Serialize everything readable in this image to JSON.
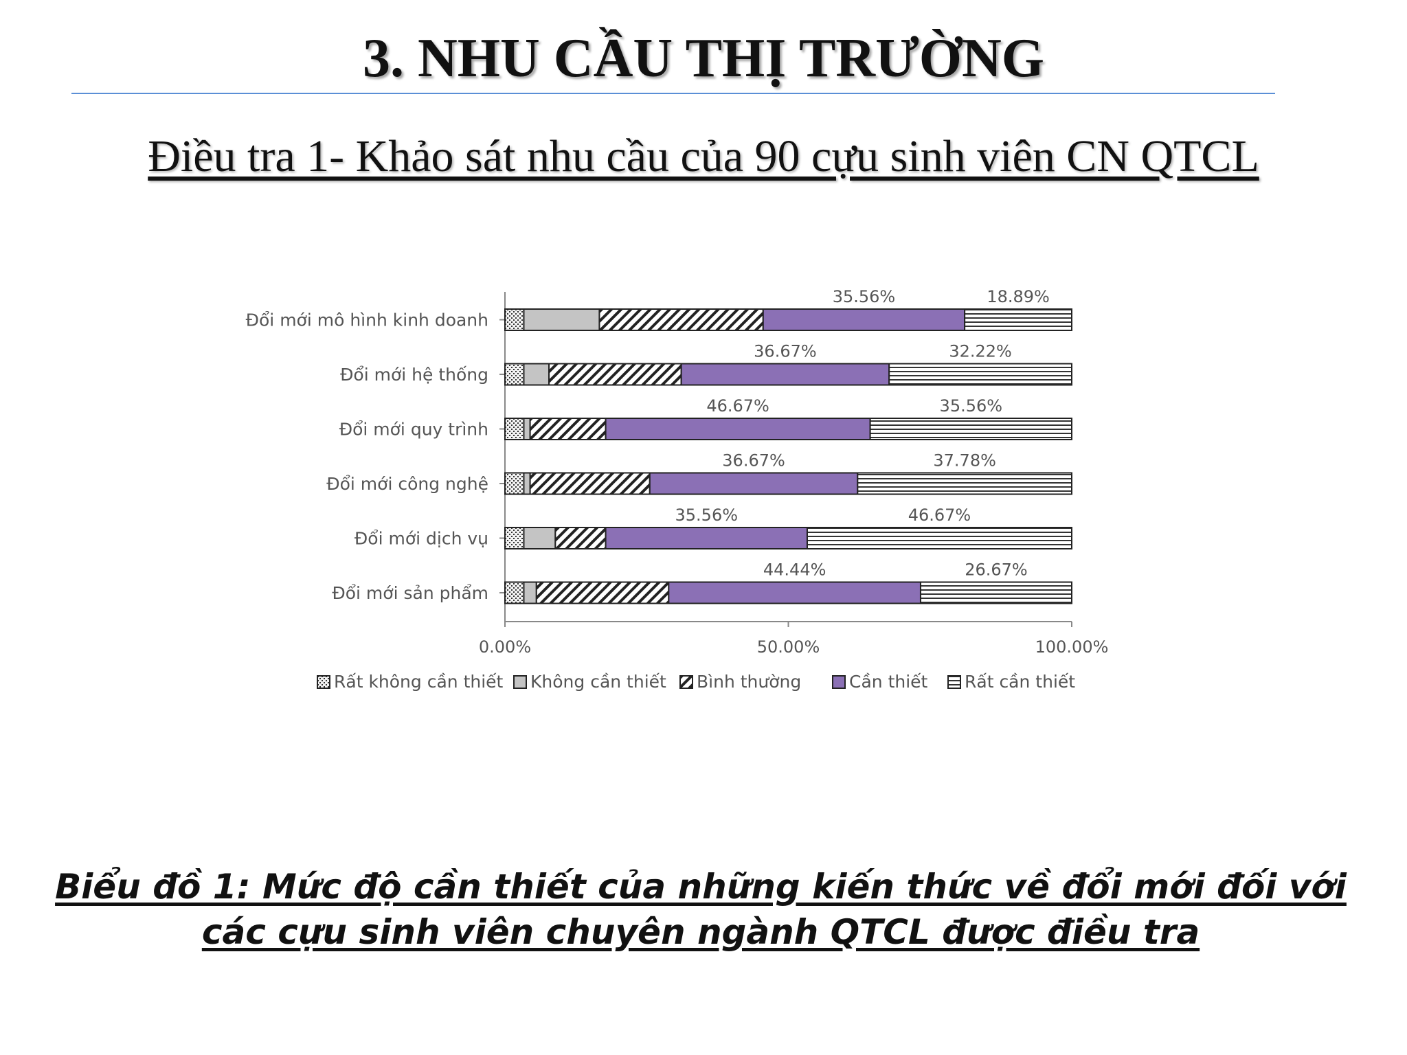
{
  "slide": {
    "title": "3. NHU CẦU THỊ TRƯỜNG",
    "subtitle": "Điều tra 1- Khảo sát nhu cầu của 90 cựu sinh viên CN QTCL",
    "caption_line1": "Biểu đồ 1: Mức độ cần thiết của những kiến thức về đổi mới đối với",
    "caption_line2": "các cựu sinh viên chuyên ngành QTCL được điều tra"
  },
  "chart_data": {
    "type": "bar",
    "orientation": "horizontal",
    "stacked": "percent",
    "categories": [
      "Đổi mới mô hình kinh doanh",
      "Đổi mới hệ thống",
      "Đổi mới quy trình",
      "Đổi mới công nghệ",
      "Đổi mới dịch vụ",
      "Đổi mới sản phẩm"
    ],
    "series": [
      {
        "name": "Rất không cần thiết",
        "pattern": "dots",
        "values": [
          3.33,
          3.33,
          3.33,
          3.33,
          3.33,
          3.33
        ]
      },
      {
        "name": "Không cần thiết",
        "pattern": "solid-gray",
        "values": [
          13.33,
          4.44,
          1.11,
          1.11,
          5.56,
          2.22
        ]
      },
      {
        "name": "Bình thường",
        "pattern": "diagonal",
        "values": [
          28.89,
          23.34,
          13.33,
          21.11,
          8.88,
          23.34
        ]
      },
      {
        "name": "Cần thiết",
        "pattern": "solid-purple",
        "values": [
          35.56,
          36.67,
          46.67,
          36.67,
          35.56,
          44.44
        ]
      },
      {
        "name": "Rất cần thiết",
        "pattern": "horizontal",
        "values": [
          18.89,
          32.22,
          35.56,
          37.78,
          46.67,
          26.67
        ]
      }
    ],
    "data_labels": {
      "Cần thiết": [
        "35.56%",
        "36.67%",
        "46.67%",
        "36.67%",
        "35.56%",
        "44.44%"
      ],
      "Rất cần thiết": [
        "18.89%",
        "32.22%",
        "35.56%",
        "37.78%",
        "46.67%",
        "26.67%"
      ]
    },
    "x_ticks": [
      "0.00%",
      "50.00%",
      "100.00%"
    ],
    "xlim": [
      0,
      100
    ],
    "xlabel": "",
    "ylabel": "",
    "legend_position": "bottom",
    "grid": false,
    "colors": {
      "purple": "#8b70b5",
      "gray": "#c4c4c4",
      "stroke": "#222222",
      "label": "#555555"
    }
  }
}
